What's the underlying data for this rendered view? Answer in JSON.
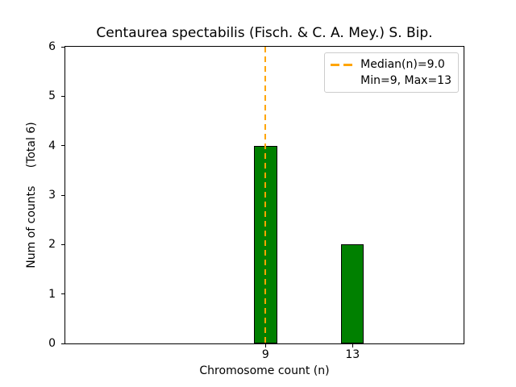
{
  "chart_data": {
    "type": "bar",
    "title": "Centaurea spectabilis (Fisch. & C. A. Mey.) S. Bip.",
    "xlabel": "Chromosome count (n)",
    "ylabel": "Num of counts     (Total 6)",
    "total_counts": 6,
    "x": [
      9,
      13
    ],
    "values": [
      4,
      2
    ],
    "bar_width": 1.05,
    "bar_color": "#008000",
    "bar_edge_color": "#000000",
    "xlim": [
      -0.2,
      18.1
    ],
    "ylim": [
      0,
      6
    ],
    "xticks": [
      9,
      13
    ],
    "yticks": [
      0,
      1,
      2,
      3,
      4,
      5,
      6
    ],
    "grid": false,
    "median_line": {
      "x": 9.0,
      "color": "#ffa500",
      "style": "dashed",
      "width": 2
    },
    "stats": {
      "median": 9.0,
      "min": 9,
      "max": 13
    },
    "legend": {
      "position": "upper-right",
      "entries": [
        {
          "label": "Median(n)=9.0",
          "sample": "orange-dashed-line",
          "color": "#ffa500"
        },
        {
          "label": "Min=9, Max=13",
          "sample": "none"
        }
      ]
    }
  }
}
